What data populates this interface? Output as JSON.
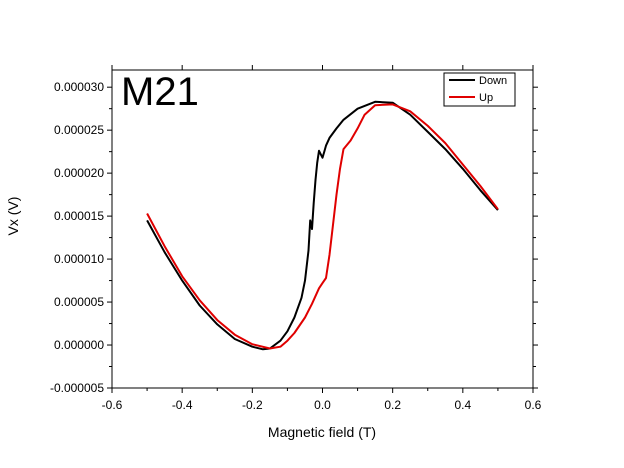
{
  "chart_data": {
    "type": "line",
    "panel_label": "M21",
    "xlabel": "Magnetic field (T)",
    "ylabel": "Vx (V)",
    "xlim": [
      -0.6,
      0.6
    ],
    "ylim": [
      -5e-06,
      3.2e-05
    ],
    "xticks": [
      "-0.6",
      "-0.4",
      "-0.2",
      "0.0",
      "0.2",
      "0.4",
      "0.6"
    ],
    "yticks": [
      "-0.000005",
      "0.000000",
      "0.000005",
      "0.000010",
      "0.000015",
      "0.000020",
      "0.000025",
      "0.000030"
    ],
    "legend_position": "top-right",
    "series": [
      {
        "name": "Down",
        "color": "#000000",
        "x": [
          -0.5,
          -0.45,
          -0.4,
          -0.35,
          -0.3,
          -0.25,
          -0.2,
          -0.17,
          -0.15,
          -0.12,
          -0.1,
          -0.08,
          -0.06,
          -0.05,
          -0.04,
          -0.035,
          -0.03,
          -0.025,
          -0.02,
          -0.015,
          -0.01,
          -0.005,
          0.0,
          0.005,
          0.01,
          0.02,
          0.04,
          0.06,
          0.1,
          0.15,
          0.2,
          0.25,
          0.3,
          0.35,
          0.4,
          0.45,
          0.5
        ],
        "y": [
          1.45e-05,
          1.08e-05,
          7.5e-06,
          4.6e-06,
          2.4e-06,
          7e-07,
          -2e-07,
          -5e-07,
          -4e-07,
          5e-07,
          1.6e-06,
          3.2e-06,
          5.5e-06,
          7.5e-06,
          1.1e-05,
          1.45e-05,
          1.35e-05,
          1.65e-05,
          1.92e-05,
          2.12e-05,
          2.26e-05,
          2.22e-05,
          2.18e-05,
          2.25e-05,
          2.32e-05,
          2.41e-05,
          2.52e-05,
          2.62e-05,
          2.75e-05,
          2.83e-05,
          2.82e-05,
          2.68e-05,
          2.48e-05,
          2.28e-05,
          2.05e-05,
          1.8e-05,
          1.57e-05
        ]
      },
      {
        "name": "Up",
        "color": "#e00000",
        "x": [
          -0.5,
          -0.45,
          -0.4,
          -0.35,
          -0.3,
          -0.25,
          -0.2,
          -0.15,
          -0.12,
          -0.1,
          -0.08,
          -0.05,
          -0.03,
          -0.01,
          0.0,
          0.01,
          0.02,
          0.03,
          0.04,
          0.05,
          0.06,
          0.08,
          0.1,
          0.12,
          0.15,
          0.2,
          0.25,
          0.3,
          0.35,
          0.4,
          0.45,
          0.5
        ],
        "y": [
          1.53e-05,
          1.15e-05,
          8e-06,
          5.2e-06,
          2.9e-06,
          1.2e-06,
          1e-07,
          -4e-07,
          -2e-07,
          5e-07,
          1.4e-06,
          3.2e-06,
          4.8e-06,
          6.6e-06,
          7.2e-06,
          7.8e-06,
          1.05e-05,
          1.4e-05,
          1.75e-05,
          2.05e-05,
          2.28e-05,
          2.38e-05,
          2.52e-05,
          2.68e-05,
          2.79e-05,
          2.8e-05,
          2.72e-05,
          2.55e-05,
          2.35e-05,
          2.1e-05,
          1.85e-05,
          1.58e-05
        ]
      }
    ]
  }
}
